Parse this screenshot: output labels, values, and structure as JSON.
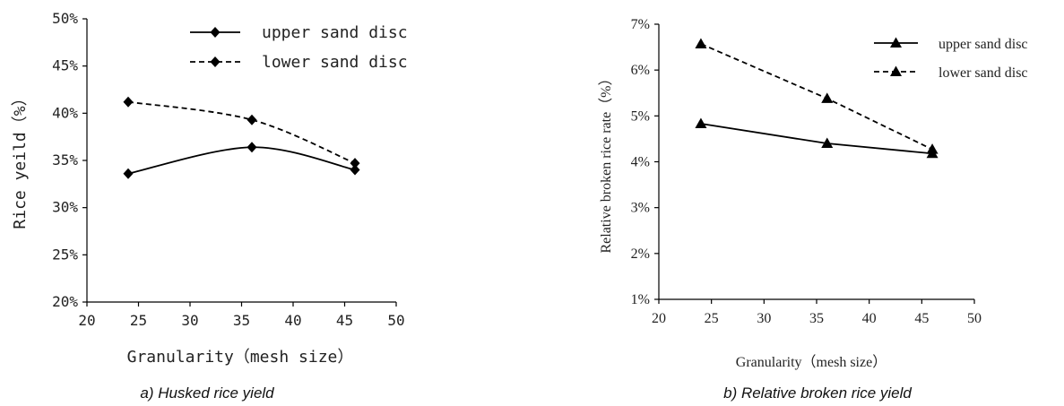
{
  "chart_data": [
    {
      "type": "line",
      "caption": "a) Husked rice yield",
      "xlabel": "Granularity（mesh size）",
      "ylabel": "Rice yeild（%）",
      "xlim": [
        20,
        50
      ],
      "ylim": [
        20,
        50
      ],
      "x_ticks": [
        "20",
        "25",
        "30",
        "35",
        "40",
        "45",
        "50"
      ],
      "y_ticks": [
        "20%",
        "25%",
        "30%",
        "35%",
        "40%",
        "45%",
        "50%"
      ],
      "legend_position": "top-right",
      "marker": "diamond",
      "x": [
        24,
        36,
        46
      ],
      "series": [
        {
          "name": "upper sand disc",
          "values": [
            33.6,
            36.4,
            34.0
          ],
          "line_style": "solid",
          "smooth": true
        },
        {
          "name": "lower sand disc",
          "values": [
            41.2,
            39.3,
            34.7
          ],
          "line_style": "dashed",
          "smooth": true
        }
      ]
    },
    {
      "type": "line",
      "caption": "b) Relative broken rice yield",
      "xlabel": "Granularity（mesh size）",
      "ylabel": "Relative broken rice rate（%）",
      "xlim": [
        20,
        50
      ],
      "ylim": [
        1,
        7
      ],
      "x_ticks": [
        "20",
        "25",
        "30",
        "35",
        "40",
        "45",
        "50"
      ],
      "y_ticks": [
        "1%",
        "2%",
        "3%",
        "4%",
        "5%",
        "6%",
        "7%"
      ],
      "legend_position": "top-right",
      "marker": "triangle",
      "x": [
        24,
        36,
        46
      ],
      "series": [
        {
          "name": "upper sand disc",
          "values": [
            4.83,
            4.4,
            4.18
          ],
          "line_style": "solid",
          "smooth": false
        },
        {
          "name": "lower sand disc",
          "values": [
            6.57,
            5.38,
            4.27
          ],
          "line_style": "dashed",
          "smooth": false
        }
      ]
    }
  ]
}
